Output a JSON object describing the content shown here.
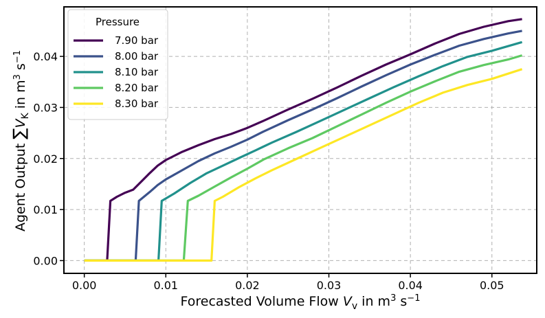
{
  "chart_data": {
    "type": "line",
    "title": "",
    "xlabel": {
      "prefix": "Forecasted Volume Flow ",
      "symbol": "V",
      "subscript": "v",
      "middle": " in m",
      "sup1": "3",
      "s": " s",
      "sup2": "−1"
    },
    "ylabel": {
      "prefix": "Agent Output ",
      "sum": "∑",
      "symbol": "V",
      "subscript": "K",
      "middle": " in m",
      "sup1": "3",
      "s": " s",
      "sup2": "−1"
    },
    "xlim": [
      -0.0025,
      0.0555
    ],
    "ylim": [
      -0.0025,
      0.0497
    ],
    "xticks": [
      0.0,
      0.01,
      0.02,
      0.03,
      0.04,
      0.05
    ],
    "xtick_labels": [
      "0.00",
      "0.01",
      "0.02",
      "0.03",
      "0.04",
      "0.05"
    ],
    "yticks": [
      0.0,
      0.01,
      0.02,
      0.03,
      0.04
    ],
    "ytick_labels": [
      "0.00",
      "0.01",
      "0.02",
      "0.03",
      "0.04"
    ],
    "grid": true,
    "legend": {
      "title": "Pressure",
      "location": "top-left"
    },
    "series": [
      {
        "name": "7.90 bar",
        "color": "#440154",
        "points": [
          [
            0,
            0
          ],
          [
            0.0028,
            0
          ],
          [
            0.0032,
            0.0117
          ],
          [
            0.004,
            0.0125
          ],
          [
            0.005,
            0.0133
          ],
          [
            0.006,
            0.0139
          ],
          [
            0.007,
            0.0155
          ],
          [
            0.008,
            0.0171
          ],
          [
            0.009,
            0.0186
          ],
          [
            0.01,
            0.0197
          ],
          [
            0.012,
            0.0213
          ],
          [
            0.014,
            0.0226
          ],
          [
            0.016,
            0.0238
          ],
          [
            0.018,
            0.0248
          ],
          [
            0.02,
            0.026
          ],
          [
            0.022,
            0.0274
          ],
          [
            0.025,
            0.0296
          ],
          [
            0.028,
            0.0317
          ],
          [
            0.031,
            0.0339
          ],
          [
            0.034,
            0.0362
          ],
          [
            0.037,
            0.0384
          ],
          [
            0.04,
            0.0404
          ],
          [
            0.043,
            0.0425
          ],
          [
            0.046,
            0.0444
          ],
          [
            0.049,
            0.0458
          ],
          [
            0.052,
            0.0469
          ],
          [
            0.0537,
            0.0473
          ]
        ]
      },
      {
        "name": "8.00 bar",
        "color": "#3b528b",
        "points": [
          [
            0,
            0
          ],
          [
            0.0063,
            0
          ],
          [
            0.0067,
            0.0117
          ],
          [
            0.008,
            0.0134
          ],
          [
            0.009,
            0.0148
          ],
          [
            0.01,
            0.0159
          ],
          [
            0.012,
            0.0177
          ],
          [
            0.014,
            0.0195
          ],
          [
            0.016,
            0.021
          ],
          [
            0.018,
            0.0223
          ],
          [
            0.02,
            0.0237
          ],
          [
            0.022,
            0.0253
          ],
          [
            0.025,
            0.0275
          ],
          [
            0.028,
            0.0296
          ],
          [
            0.031,
            0.0318
          ],
          [
            0.034,
            0.0341
          ],
          [
            0.037,
            0.0363
          ],
          [
            0.04,
            0.0384
          ],
          [
            0.043,
            0.0403
          ],
          [
            0.046,
            0.0421
          ],
          [
            0.049,
            0.0434
          ],
          [
            0.052,
            0.0445
          ],
          [
            0.0537,
            0.045
          ]
        ]
      },
      {
        "name": "8.10 bar",
        "color": "#21918c",
        "points": [
          [
            0,
            0
          ],
          [
            0.0091,
            0
          ],
          [
            0.0095,
            0.0117
          ],
          [
            0.011,
            0.0131
          ],
          [
            0.013,
            0.0152
          ],
          [
            0.015,
            0.0171
          ],
          [
            0.017,
            0.0186
          ],
          [
            0.019,
            0.0201
          ],
          [
            0.021,
            0.0216
          ],
          [
            0.023,
            0.0231
          ],
          [
            0.026,
            0.0252
          ],
          [
            0.029,
            0.0274
          ],
          [
            0.032,
            0.0296
          ],
          [
            0.035,
            0.0318
          ],
          [
            0.038,
            0.034
          ],
          [
            0.041,
            0.0361
          ],
          [
            0.044,
            0.0381
          ],
          [
            0.047,
            0.0399
          ],
          [
            0.05,
            0.0411
          ],
          [
            0.0537,
            0.0428
          ]
        ]
      },
      {
        "name": "8.20 bar",
        "color": "#5ec962",
        "points": [
          [
            0,
            0
          ],
          [
            0.0122,
            0
          ],
          [
            0.0127,
            0.0117
          ],
          [
            0.014,
            0.0127
          ],
          [
            0.016,
            0.0145
          ],
          [
            0.018,
            0.0163
          ],
          [
            0.02,
            0.018
          ],
          [
            0.022,
            0.0198
          ],
          [
            0.025,
            0.022
          ],
          [
            0.028,
            0.024
          ],
          [
            0.031,
            0.0263
          ],
          [
            0.034,
            0.0286
          ],
          [
            0.037,
            0.0309
          ],
          [
            0.04,
            0.0331
          ],
          [
            0.043,
            0.0351
          ],
          [
            0.046,
            0.037
          ],
          [
            0.049,
            0.0383
          ],
          [
            0.052,
            0.0394
          ],
          [
            0.0537,
            0.0402
          ]
        ]
      },
      {
        "name": "8.30 bar",
        "color": "#fde725",
        "points": [
          [
            0,
            0
          ],
          [
            0.0156,
            0
          ],
          [
            0.016,
            0.0117
          ],
          [
            0.017,
            0.0125
          ],
          [
            0.019,
            0.0144
          ],
          [
            0.021,
            0.0161
          ],
          [
            0.023,
            0.0177
          ],
          [
            0.026,
            0.0199
          ],
          [
            0.029,
            0.0221
          ],
          [
            0.032,
            0.0243
          ],
          [
            0.035,
            0.0265
          ],
          [
            0.038,
            0.0287
          ],
          [
            0.041,
            0.0309
          ],
          [
            0.044,
            0.0329
          ],
          [
            0.047,
            0.0344
          ],
          [
            0.05,
            0.0356
          ],
          [
            0.0537,
            0.0375
          ]
        ]
      }
    ]
  }
}
